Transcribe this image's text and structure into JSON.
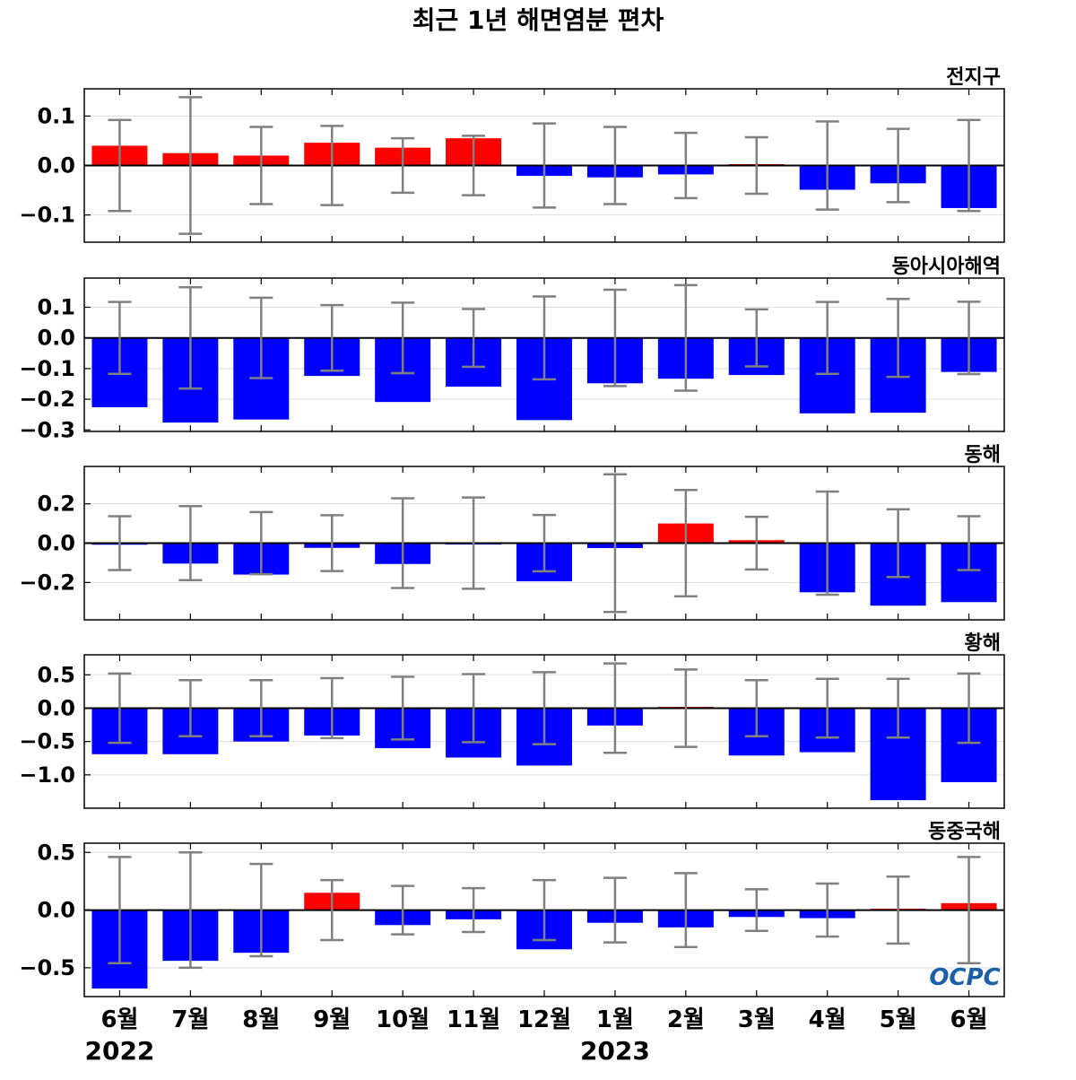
{
  "title": "최근 1년 해면염분 편차",
  "logo_text": "OCPC",
  "colors": {
    "positive": "#ff0000",
    "negative": "#0000ff",
    "error_bar": "#808080",
    "zero_line": "#000000",
    "grid": "#dddddd",
    "logo": "#1b5fa8"
  },
  "chart_data": [
    {
      "type": "bar",
      "panel_label": "전지구",
      "categories": [
        "6월",
        "7월",
        "8월",
        "9월",
        "10월",
        "11월",
        "12월",
        "1월",
        "2월",
        "3월",
        "4월",
        "5월",
        "6월"
      ],
      "values": [
        0.04,
        0.025,
        0.02,
        0.046,
        0.036,
        0.055,
        -0.021,
        -0.024,
        -0.018,
        0.002,
        -0.049,
        -0.036,
        -0.086
      ],
      "error_bars": [
        0.092,
        0.138,
        0.078,
        0.08,
        0.055,
        0.06,
        0.085,
        0.078,
        0.066,
        0.057,
        0.089,
        0.074,
        0.092
      ],
      "ylim": [
        -0.155,
        0.155
      ],
      "yticks": [
        -0.1,
        0.0,
        0.1
      ],
      "ytick_labels": [
        "−0.1",
        "0.0",
        "0.1"
      ],
      "grid": true
    },
    {
      "type": "bar",
      "panel_label": "동아시아해역",
      "categories": [
        "6월",
        "7월",
        "8월",
        "9월",
        "10월",
        "11월",
        "12월",
        "1월",
        "2월",
        "3월",
        "4월",
        "5월",
        "6월"
      ],
      "values": [
        -0.226,
        -0.276,
        -0.266,
        -0.124,
        -0.209,
        -0.159,
        -0.268,
        -0.148,
        -0.133,
        -0.121,
        -0.246,
        -0.244,
        -0.111
      ],
      "error_bars": [
        0.117,
        0.165,
        0.131,
        0.107,
        0.115,
        0.094,
        0.135,
        0.157,
        0.172,
        0.093,
        0.117,
        0.127,
        0.118
      ],
      "ylim": [
        -0.305,
        0.195
      ],
      "yticks": [
        -0.3,
        -0.2,
        -0.1,
        0.0,
        0.1
      ],
      "ytick_labels": [
        "−0.3",
        "−0.2",
        "−0.1",
        "0.0",
        "0.1"
      ],
      "grid": true
    },
    {
      "type": "bar",
      "panel_label": "동해",
      "categories": [
        "6월",
        "7월",
        "8월",
        "9월",
        "10월",
        "11월",
        "12월",
        "1월",
        "2월",
        "3월",
        "4월",
        "5월",
        "6월"
      ],
      "values": [
        -0.008,
        -0.104,
        -0.16,
        -0.024,
        -0.106,
        -0.005,
        -0.194,
        -0.025,
        0.1,
        0.015,
        -0.25,
        -0.318,
        -0.3
      ],
      "error_bars": [
        0.137,
        0.188,
        0.158,
        0.142,
        0.228,
        0.232,
        0.143,
        0.35,
        0.27,
        0.134,
        0.262,
        0.172,
        0.137
      ],
      "ylim": [
        -0.39,
        0.39
      ],
      "yticks": [
        -0.2,
        0.0,
        0.2
      ],
      "ytick_labels": [
        "−0.2",
        "0.0",
        "0.2"
      ],
      "grid": true
    },
    {
      "type": "bar",
      "panel_label": "황해",
      "categories": [
        "6월",
        "7월",
        "8월",
        "9월",
        "10월",
        "11월",
        "12월",
        "1월",
        "2월",
        "3월",
        "4월",
        "5월",
        "6월"
      ],
      "values": [
        -0.69,
        -0.69,
        -0.5,
        -0.41,
        -0.6,
        -0.74,
        -0.86,
        -0.26,
        0.01,
        -0.71,
        -0.66,
        -1.38,
        -1.11
      ],
      "error_bars": [
        0.52,
        0.42,
        0.42,
        0.45,
        0.47,
        0.51,
        0.54,
        0.67,
        0.58,
        0.42,
        0.44,
        0.44,
        0.52
      ],
      "ylim": [
        -1.5,
        0.8
      ],
      "yticks": [
        -1.0,
        -0.5,
        0.0,
        0.5
      ],
      "ytick_labels": [
        "−1.0",
        "−0.5",
        "0.0",
        "0.5"
      ],
      "grid": true
    },
    {
      "type": "bar",
      "panel_label": "동중국해",
      "categories": [
        "6월",
        "7월",
        "8월",
        "9월",
        "10월",
        "11월",
        "12월",
        "1월",
        "2월",
        "3월",
        "4월",
        "5월",
        "6월"
      ],
      "values": [
        -0.68,
        -0.44,
        -0.37,
        0.15,
        -0.13,
        -0.08,
        -0.34,
        -0.11,
        -0.15,
        -0.06,
        -0.07,
        0.005,
        0.06
      ],
      "error_bars": [
        0.46,
        0.5,
        0.4,
        0.26,
        0.21,
        0.19,
        0.26,
        0.28,
        0.32,
        0.18,
        0.23,
        0.29,
        0.46
      ],
      "ylim": [
        -0.75,
        0.58
      ],
      "yticks": [
        -0.5,
        0.0,
        0.5
      ],
      "ytick_labels": [
        "−0.5",
        "0.0",
        "0.5"
      ],
      "grid": true
    }
  ],
  "x_axis": {
    "tick_labels": [
      "6월",
      "7월",
      "8월",
      "9월",
      "10월",
      "11월",
      "12월",
      "1월",
      "2월",
      "3월",
      "4월",
      "5월",
      "6월"
    ],
    "year_labels": [
      {
        "label": "2022",
        "under_index": 0
      },
      {
        "label": "2023",
        "under_index": 7
      }
    ]
  }
}
